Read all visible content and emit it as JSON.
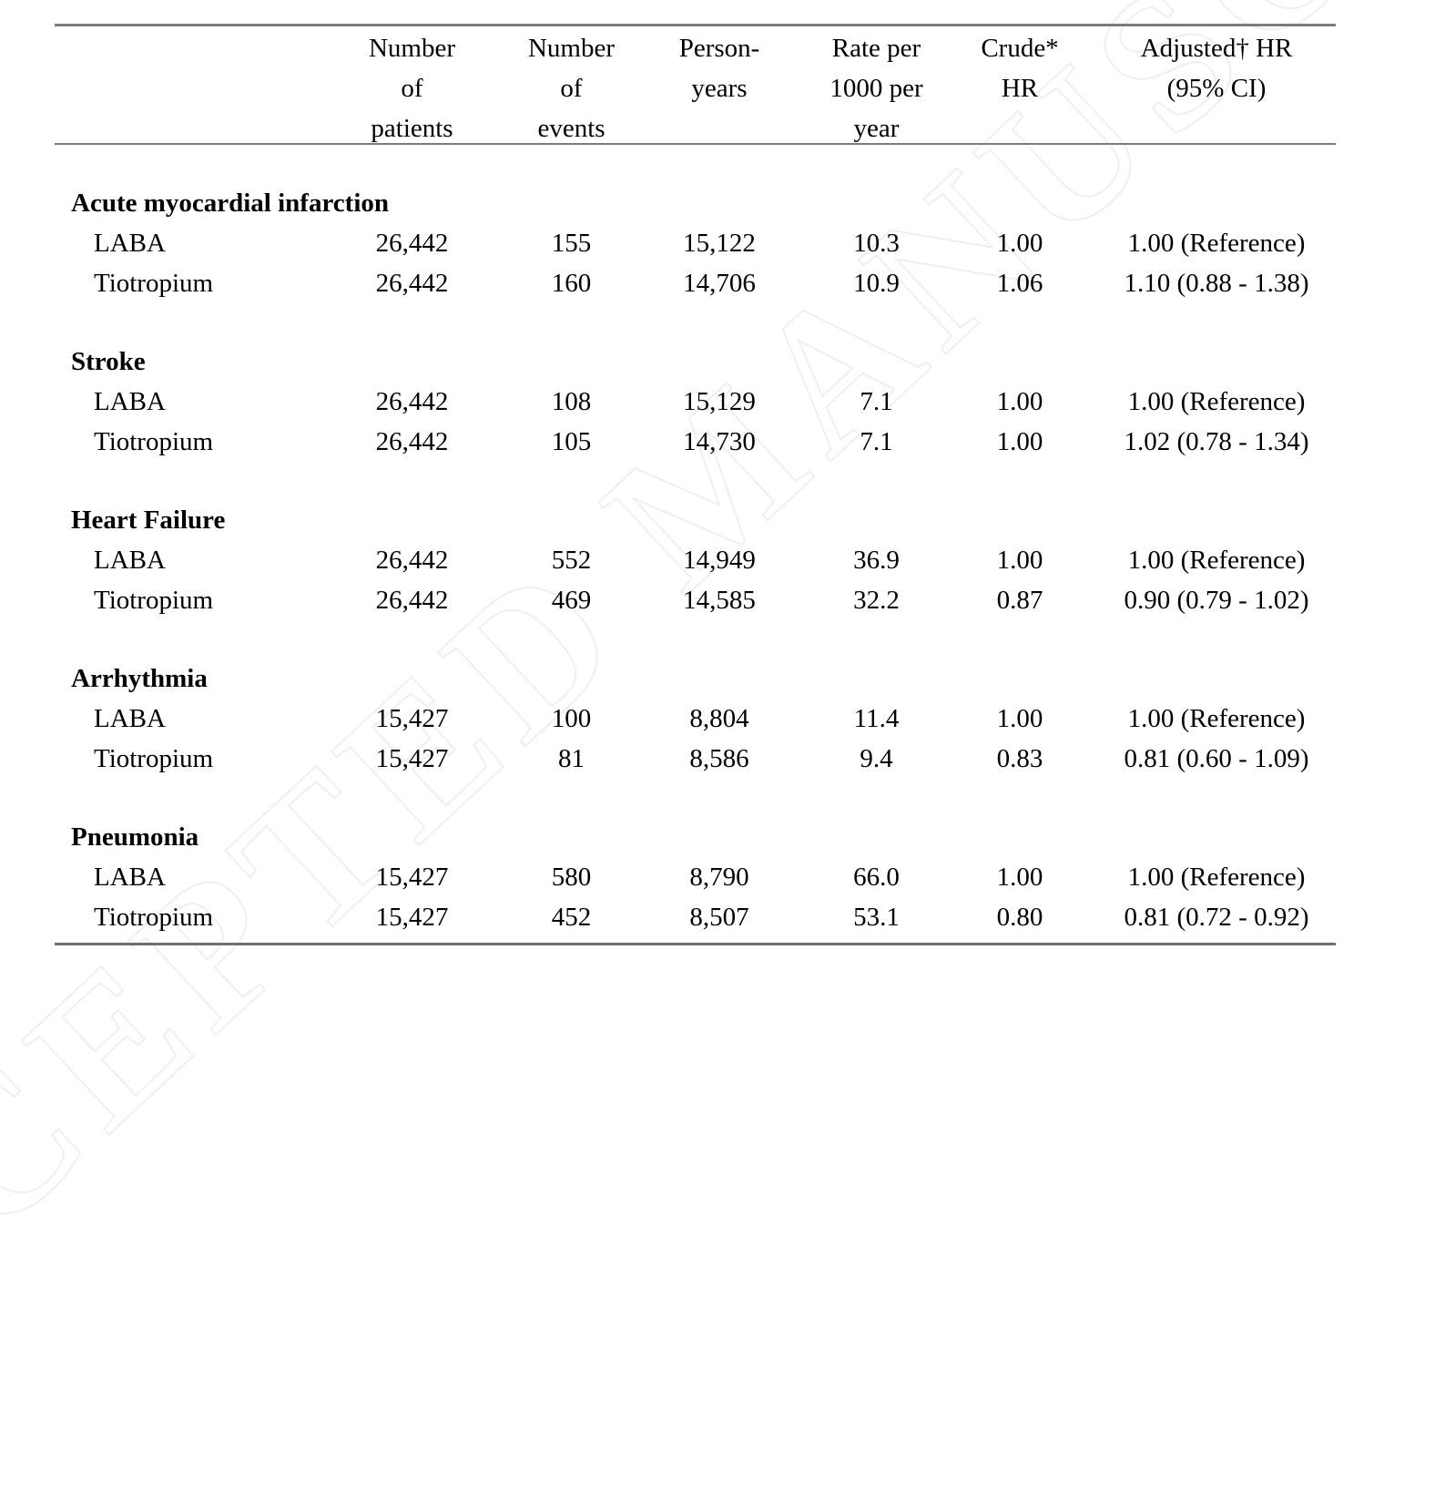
{
  "watermark": {
    "text": "ACCEPTED MANUSCRIPT"
  },
  "table": {
    "headers": [
      "",
      "Number\nof\npatients",
      "Number\nof\nevents",
      "Person-\nyears",
      "Rate per\n1000 per\nyear",
      "Crude*\nHR",
      "Adjusted† HR\n(95% CI)"
    ],
    "sections": [
      {
        "name": "Acute myocardial infarction",
        "rows": [
          {
            "label": "LABA",
            "patients": "26,442",
            "events": "155",
            "person_years": "15,122",
            "rate": "10.3",
            "crude_hr": "1.00",
            "adjusted_hr": "1.00 (Reference)"
          },
          {
            "label": "Tiotropium",
            "patients": "26,442",
            "events": "160",
            "person_years": "14,706",
            "rate": "10.9",
            "crude_hr": "1.06",
            "adjusted_hr": "1.10 (0.88 - 1.38)"
          }
        ]
      },
      {
        "name": "Stroke",
        "rows": [
          {
            "label": "LABA",
            "patients": "26,442",
            "events": "108",
            "person_years": "15,129",
            "rate": "7.1",
            "crude_hr": "1.00",
            "adjusted_hr": "1.00 (Reference)"
          },
          {
            "label": "Tiotropium",
            "patients": "26,442",
            "events": "105",
            "person_years": "14,730",
            "rate": "7.1",
            "crude_hr": "1.00",
            "adjusted_hr": "1.02 (0.78 - 1.34)"
          }
        ]
      },
      {
        "name": "Heart Failure",
        "rows": [
          {
            "label": "LABA",
            "patients": "26,442",
            "events": "552",
            "person_years": "14,949",
            "rate": "36.9",
            "crude_hr": "1.00",
            "adjusted_hr": "1.00 (Reference)"
          },
          {
            "label": "Tiotropium",
            "patients": "26,442",
            "events": "469",
            "person_years": "14,585",
            "rate": "32.2",
            "crude_hr": "0.87",
            "adjusted_hr": "0.90 (0.79 - 1.02)"
          }
        ]
      },
      {
        "name": "Arrhythmia",
        "rows": [
          {
            "label": "LABA",
            "patients": "15,427",
            "events": "100",
            "person_years": "8,804",
            "rate": "11.4",
            "crude_hr": "1.00",
            "adjusted_hr": "1.00 (Reference)"
          },
          {
            "label": "Tiotropium",
            "patients": "15,427",
            "events": "81",
            "person_years": "8,586",
            "rate": "9.4",
            "crude_hr": "0.83",
            "adjusted_hr": "0.81 (0.60 - 1.09)"
          }
        ]
      },
      {
        "name": "Pneumonia",
        "rows": [
          {
            "label": "LABA",
            "patients": "15,427",
            "events": "580",
            "person_years": "8,790",
            "rate": "66.0",
            "crude_hr": "1.00",
            "adjusted_hr": "1.00 (Reference)"
          },
          {
            "label": "Tiotropium",
            "patients": "15,427",
            "events": "452",
            "person_years": "8,507",
            "rate": "53.1",
            "crude_hr": "0.80",
            "adjusted_hr": "0.81 (0.72 - 0.92)"
          }
        ]
      }
    ]
  }
}
